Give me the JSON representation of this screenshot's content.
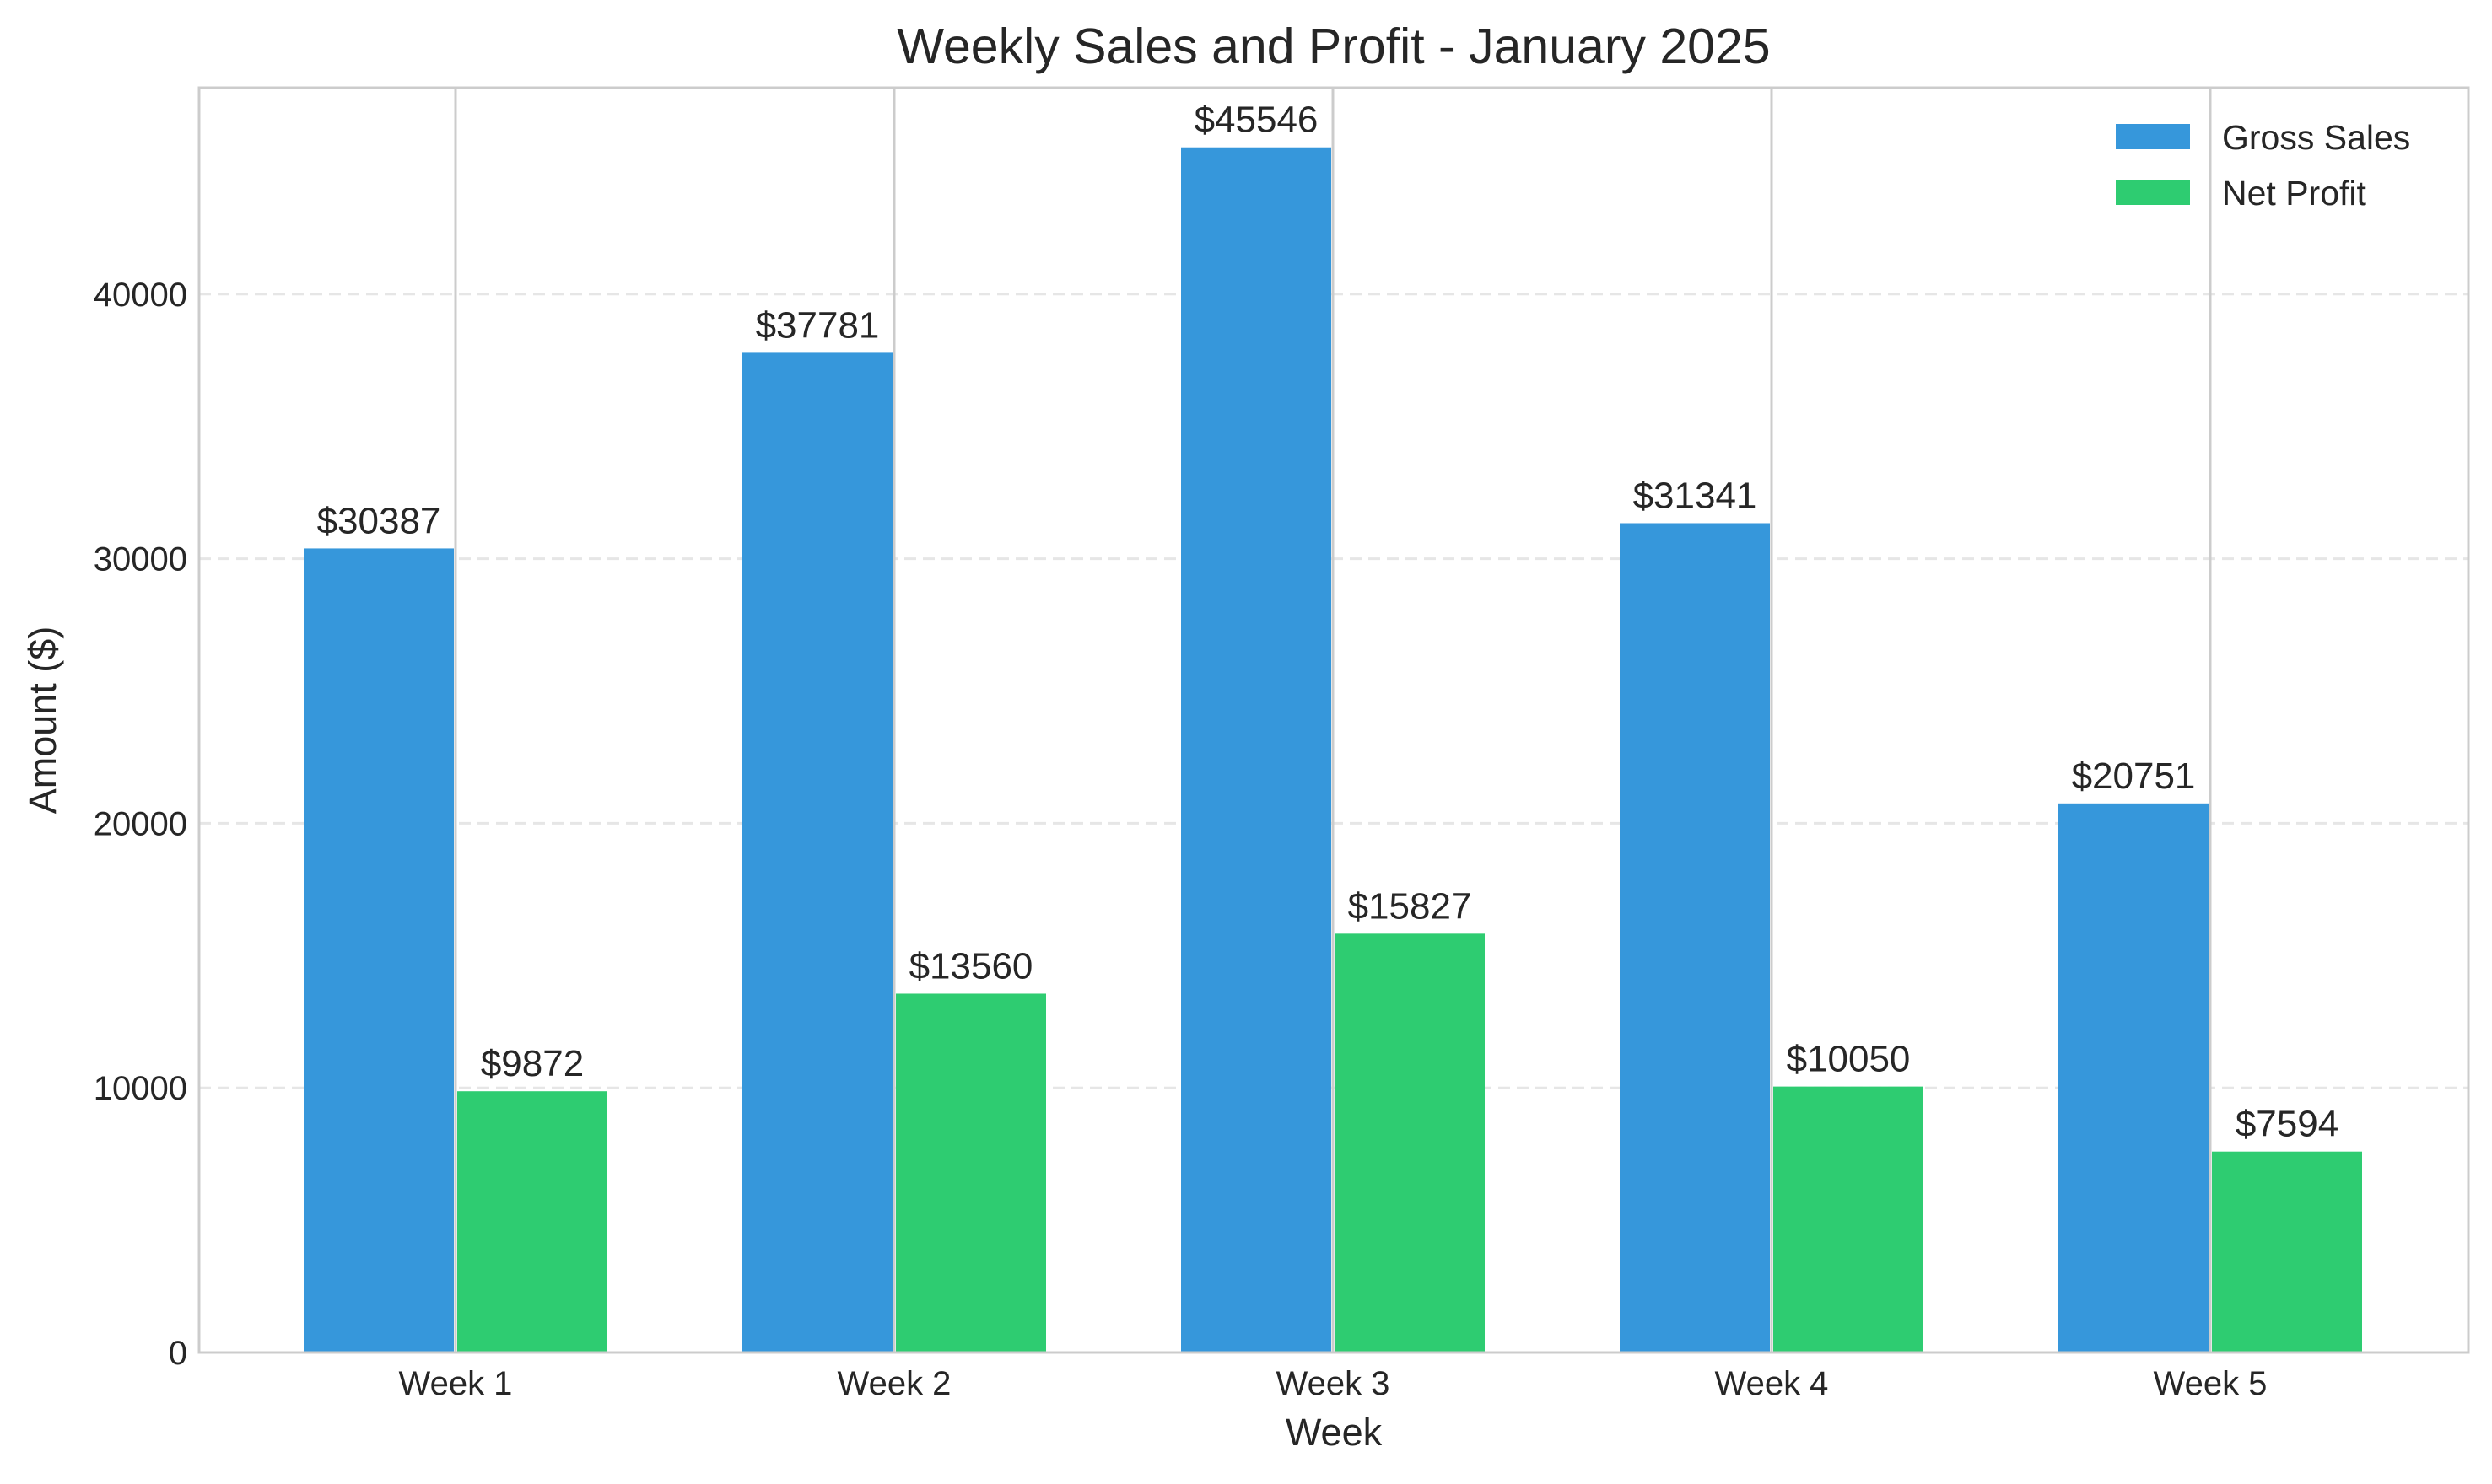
{
  "chart_data": {
    "type": "bar",
    "title": "Weekly Sales and Profit - January 2025",
    "xlabel": "Week",
    "ylabel": "Amount ($)",
    "categories": [
      "Week 1",
      "Week 2",
      "Week 3",
      "Week 4",
      "Week 5"
    ],
    "series": [
      {
        "name": "Gross Sales",
        "color": "#3697db",
        "values": [
          30387,
          37781,
          45546,
          31341,
          20751
        ]
      },
      {
        "name": "Net Profit",
        "color": "#2ecc71",
        "values": [
          9872,
          13560,
          15827,
          10050,
          7594
        ]
      }
    ],
    "value_prefix": "$",
    "ylim": [
      0,
      47800
    ],
    "yticks": [
      0,
      10000,
      20000,
      30000,
      40000
    ],
    "grid": "horizontal dashed",
    "legend_position": "top-right"
  }
}
